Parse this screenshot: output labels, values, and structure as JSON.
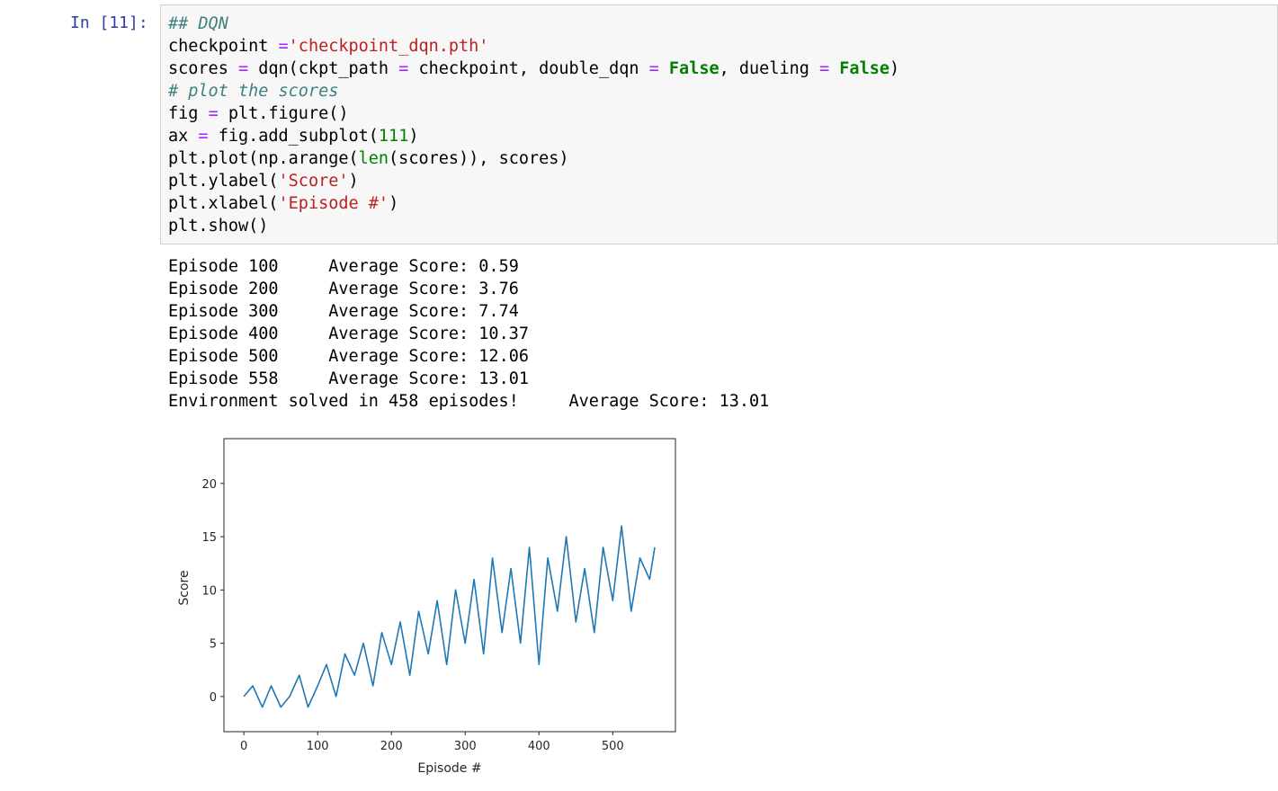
{
  "cell": {
    "prompt": "In [11]:",
    "code_lines": [
      [
        {
          "t": "## DQN",
          "c": "comment"
        }
      ],
      [
        {
          "t": "checkpoint "
        },
        {
          "t": "=",
          "c": "op"
        },
        {
          "t": "'checkpoint_dqn.pth'",
          "c": "string"
        }
      ],
      [
        {
          "t": "scores "
        },
        {
          "t": "=",
          "c": "op"
        },
        {
          "t": " dqn(ckpt_path "
        },
        {
          "t": "=",
          "c": "op"
        },
        {
          "t": " checkpoint, double_dqn "
        },
        {
          "t": "=",
          "c": "op"
        },
        {
          "t": " "
        },
        {
          "t": "False",
          "c": "kw"
        },
        {
          "t": ", dueling "
        },
        {
          "t": "=",
          "c": "op"
        },
        {
          "t": " "
        },
        {
          "t": "False",
          "c": "kw"
        },
        {
          "t": ")"
        }
      ],
      [
        {
          "t": "# plot the scores",
          "c": "comment"
        }
      ],
      [
        {
          "t": "fig "
        },
        {
          "t": "=",
          "c": "op"
        },
        {
          "t": " plt.figure()"
        }
      ],
      [
        {
          "t": "ax "
        },
        {
          "t": "=",
          "c": "op"
        },
        {
          "t": " fig.add_subplot("
        },
        {
          "t": "111",
          "c": "num"
        },
        {
          "t": ")"
        }
      ],
      [
        {
          "t": "plt.plot(np.arange("
        },
        {
          "t": "len",
          "c": "builtin"
        },
        {
          "t": "(scores)), scores)"
        }
      ],
      [
        {
          "t": "plt.ylabel("
        },
        {
          "t": "'Score'",
          "c": "string"
        },
        {
          "t": ")"
        }
      ],
      [
        {
          "t": "plt.xlabel("
        },
        {
          "t": "'Episode #'",
          "c": "string"
        },
        {
          "t": ")"
        }
      ],
      [
        {
          "t": "plt.show()"
        }
      ]
    ],
    "output_lines": [
      "Episode 100\tAverage Score: 0.59",
      "Episode 200\tAverage Score: 3.76",
      "Episode 300\tAverage Score: 7.74",
      "Episode 400\tAverage Score: 10.37",
      "Episode 500\tAverage Score: 12.06",
      "Episode 558\tAverage Score: 13.01",
      "Environment solved in 458 episodes!\tAverage Score: 13.01"
    ]
  },
  "chart_data": {
    "type": "line",
    "title": "",
    "xlabel": "Episode #",
    "ylabel": "Score",
    "xlim": [
      -27,
      585
    ],
    "ylim": [
      -3.3,
      24.2
    ],
    "xticks": [
      0,
      100,
      200,
      300,
      400,
      500
    ],
    "yticks": [
      0,
      5,
      10,
      15,
      20
    ],
    "line_color": "#1f77b4",
    "grid": false,
    "series": [
      {
        "x": [
          0,
          12,
          25,
          37,
          50,
          62,
          75,
          87,
          100,
          112,
          125,
          137,
          150,
          162,
          175,
          187,
          200,
          212,
          225,
          237,
          250,
          262,
          275,
          287,
          300,
          312,
          325,
          337,
          350,
          362,
          375,
          387,
          400,
          412,
          425,
          437,
          450,
          462,
          475,
          487,
          500,
          512,
          525,
          537,
          550,
          557
        ],
        "values": [
          0,
          1,
          -1,
          1,
          -1,
          0,
          2,
          -1,
          1,
          3,
          0,
          4,
          2,
          5,
          1,
          6,
          3,
          7,
          2,
          8,
          4,
          9,
          3,
          10,
          5,
          11,
          4,
          13,
          6,
          12,
          5,
          14,
          3,
          13,
          8,
          15,
          7,
          12,
          6,
          14,
          9,
          16,
          8,
          13,
          11,
          14
        ]
      }
    ]
  }
}
